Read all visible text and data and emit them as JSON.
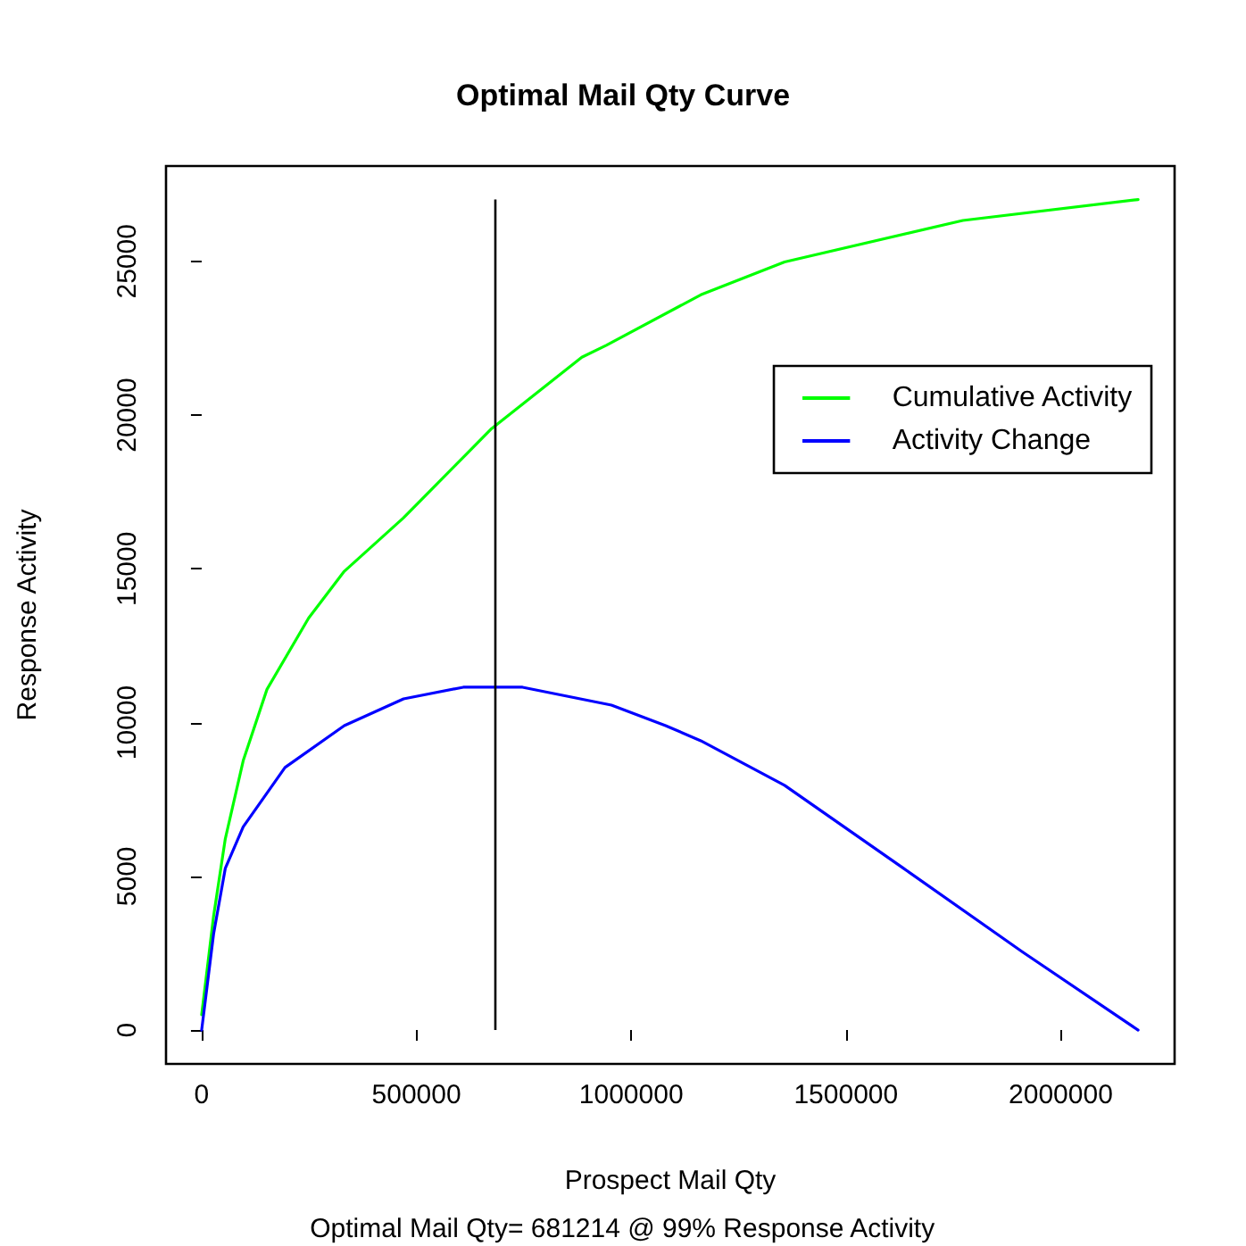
{
  "chart_data": {
    "type": "line",
    "title": "Optimal Mail Qty Curve",
    "xlabel": "Prospect Mail Qty",
    "ylabel": "Response Activity",
    "annotations": [
      "Optimal Mail Qty= 681214 @ 99% Response Activity"
    ],
    "xlim": [
      -83000,
      2265000
    ],
    "ylim": [
      -1100,
      28100
    ],
    "xticks": [
      0,
      500000,
      1000000,
      1500000,
      2000000
    ],
    "yticks": [
      0,
      5000,
      10000,
      15000,
      20000,
      25000
    ],
    "grid": false,
    "legend": "top right",
    "marker": "none",
    "line_style": "solid",
    "ref_lines": [
      {
        "axis": "x",
        "value": 681214,
        "color": "#000000"
      }
    ],
    "series": [
      {
        "name": "Cumulative Activity",
        "color": "#00ff00",
        "x": [
          0,
          27800,
          55000,
          96700,
          152000,
          249000,
          332000,
          470000,
          675000,
          885000,
          942000,
          1162000,
          1357000,
          1772000,
          2180000
        ],
        "values": [
          500,
          3710,
          6220,
          8760,
          11080,
          13400,
          14920,
          16660,
          19560,
          21880,
          22270,
          23910,
          24980,
          26330,
          27010
        ]
      },
      {
        "name": "Activity Change",
        "color": "#0000ff",
        "x": [
          0,
          27800,
          55000,
          96700,
          194000,
          332000,
          470000,
          609000,
          747000,
          954000,
          1080000,
          1162000,
          1357000,
          1634000,
          1910000,
          2180000
        ],
        "values": [
          0,
          3130,
          5260,
          6610,
          8540,
          9900,
          10770,
          11150,
          11150,
          10570,
          9900,
          9410,
          7960,
          5260,
          2550,
          0
        ]
      }
    ]
  }
}
